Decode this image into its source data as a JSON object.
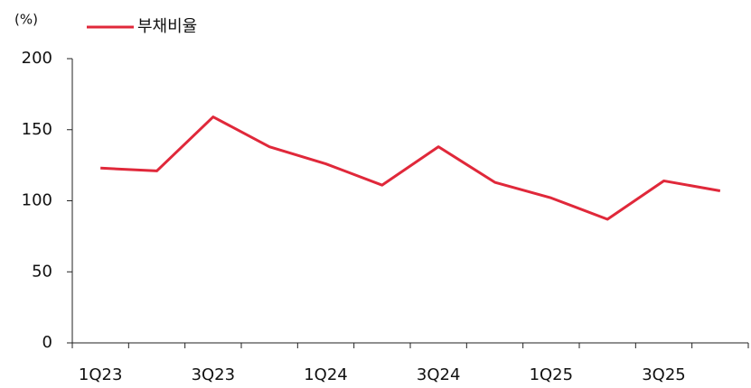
{
  "chart_data": {
    "type": "line",
    "y_unit_label": "(%)",
    "categories": [
      "1Q23",
      null,
      "3Q23",
      null,
      "1Q24",
      null,
      "3Q24",
      null,
      "1Q25",
      null,
      "3Q25",
      null
    ],
    "series": [
      {
        "name": "부채비율",
        "color": "#e0283a",
        "values": [
          123,
          121,
          159,
          138,
          126,
          111,
          138,
          113,
          102,
          87,
          114,
          107
        ]
      }
    ],
    "ylim": [
      0,
      200
    ],
    "yticks": [
      0,
      50,
      100,
      150,
      200
    ],
    "grid": false
  }
}
